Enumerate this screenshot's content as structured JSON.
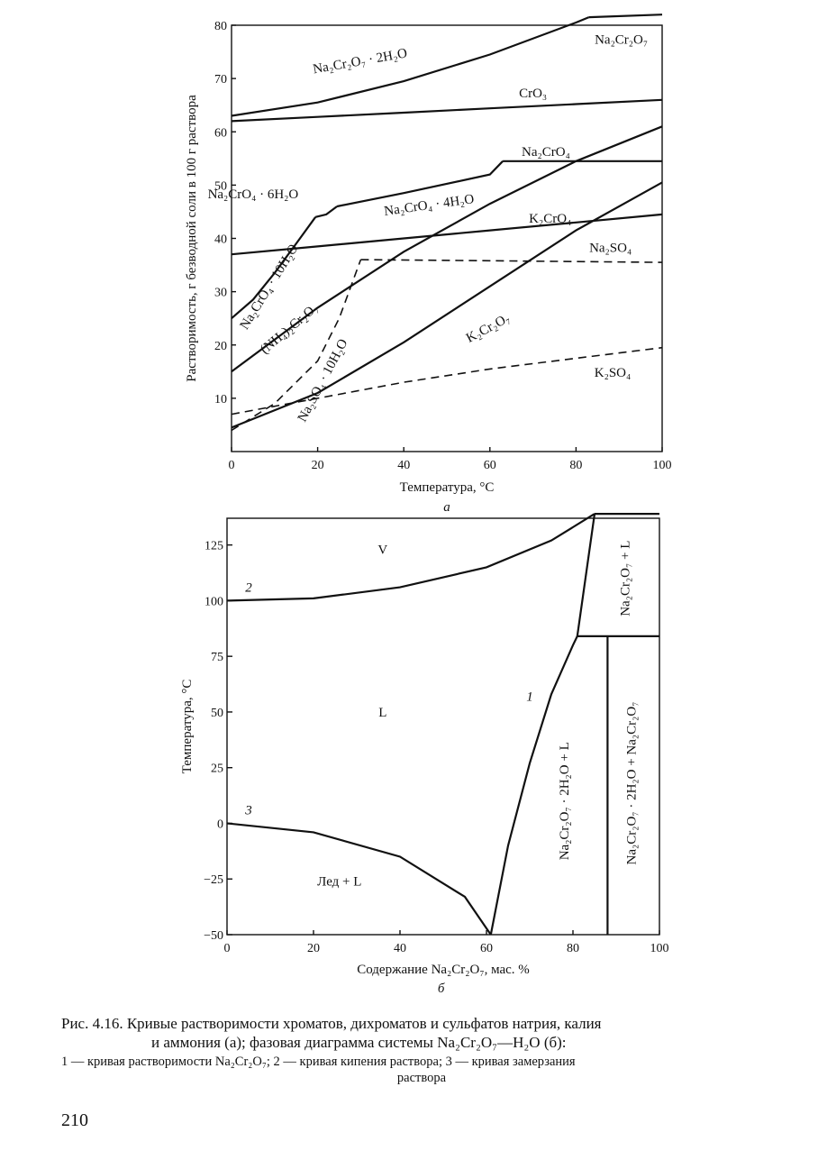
{
  "chart_data": [
    {
      "type": "line",
      "panel_label": "а",
      "ylabel": "Растворимость, г безводной соли в 100 г раствора",
      "xlabel": "Температура, °С",
      "xlim": [
        0,
        100
      ],
      "ylim": [
        0,
        80
      ],
      "xticks": [
        0,
        20,
        40,
        60,
        80,
        100
      ],
      "yticks": [
        10,
        20,
        30,
        40,
        50,
        60,
        70,
        80
      ],
      "series": [
        {
          "name": "Na₂Cr₂O₇ · 2H₂O",
          "style": "solid",
          "x": [
            0,
            20,
            40,
            60,
            80,
            83
          ],
          "y": [
            63,
            65.5,
            69.5,
            74.5,
            80.5,
            81.5
          ]
        },
        {
          "name": "Na₂Cr₂O₇",
          "style": "solid",
          "x": [
            83,
            100
          ],
          "y": [
            81.5,
            82
          ]
        },
        {
          "name": "CrO₃",
          "style": "solid",
          "x": [
            0,
            20,
            40,
            60,
            80,
            100
          ],
          "y": [
            62.0,
            62.8,
            63.6,
            64.4,
            65.2,
            66.0
          ]
        },
        {
          "name": "Na₂CrO₄ · 10H₂O",
          "style": "solid",
          "x": [
            0,
            5,
            10,
            15,
            19.5
          ],
          "y": [
            25,
            28.5,
            33.5,
            39,
            44
          ]
        },
        {
          "name": "Na₂CrO₄ · 6H₂O",
          "style": "solid",
          "x": [
            19.5,
            22,
            24.5
          ],
          "y": [
            44,
            44.5,
            46
          ]
        },
        {
          "name": "Na₂CrO₄ · 4H₂O",
          "style": "solid",
          "x": [
            24.5,
            40,
            60,
            63
          ],
          "y": [
            46,
            48.5,
            52,
            54.5
          ]
        },
        {
          "name": "Na₂CrO₄",
          "style": "solid",
          "x": [
            63,
            80,
            100
          ],
          "y": [
            54.5,
            54.5,
            54.5
          ]
        },
        {
          "name": "K₂CrO₄",
          "style": "solid",
          "x": [
            0,
            20,
            40,
            60,
            80,
            100
          ],
          "y": [
            37,
            38.5,
            40,
            41.5,
            43,
            44.5
          ]
        },
        {
          "name": "(NH₄)₂Cr₂O₇",
          "style": "solid",
          "x": [
            0,
            20,
            40,
            60,
            80,
            100
          ],
          "y": [
            15,
            27,
            37.5,
            46.5,
            54.5,
            61
          ]
        },
        {
          "name": "K₂Cr₂O₇",
          "style": "solid",
          "x": [
            0,
            20,
            40,
            60,
            80,
            100
          ],
          "y": [
            4.5,
            11,
            20.5,
            31,
            41.5,
            50.5
          ]
        },
        {
          "name": "Na₂SO₄ · 10H₂O",
          "style": "dashed",
          "x": [
            0,
            10,
            20,
            25,
            30
          ],
          "y": [
            4,
            9,
            17,
            25,
            36
          ]
        },
        {
          "name": "Na₂SO₄",
          "style": "dashed",
          "x": [
            30,
            60,
            100
          ],
          "y": [
            36,
            35.8,
            35.5
          ]
        },
        {
          "name": "K₂SO₄",
          "style": "dashed",
          "x": [
            0,
            20,
            40,
            60,
            80,
            100
          ],
          "y": [
            7,
            10,
            13,
            15.5,
            17.5,
            19.5
          ]
        }
      ]
    },
    {
      "type": "line",
      "panel_label": "б",
      "ylabel": "Температура, °С",
      "xlabel": "Содержание Na₂Cr₂O₇, мас. %",
      "xlim": [
        0,
        100
      ],
      "ylim": [
        -50,
        137
      ],
      "xticks": [
        0,
        20,
        40,
        60,
        80,
        100
      ],
      "yticks": [
        -50,
        -25,
        0,
        25,
        50,
        75,
        100,
        125
      ],
      "series": [
        {
          "name": "1",
          "style": "solid",
          "x": [
            61,
            65,
            70,
            75,
            80,
            81
          ],
          "y": [
            -50,
            -10,
            27,
            58,
            80,
            84
          ]
        },
        {
          "name": "2",
          "style": "solid",
          "x": [
            0,
            20,
            40,
            60,
            75,
            85
          ],
          "y": [
            100,
            101,
            106,
            115,
            127,
            139
          ]
        },
        {
          "name": "3",
          "style": "solid",
          "x": [
            0,
            20,
            40,
            55,
            61
          ],
          "y": [
            0,
            -4,
            -15,
            -33,
            -50
          ]
        },
        {
          "name": "",
          "style": "solid",
          "x": [
            85,
            100
          ],
          "y": [
            139,
            139
          ]
        },
        {
          "name": "",
          "style": "solid",
          "x": [
            81,
            100
          ],
          "y": [
            84,
            84
          ]
        },
        {
          "name": "",
          "style": "solid",
          "x": [
            85,
            81
          ],
          "y": [
            139,
            84
          ]
        },
        {
          "name": "",
          "style": "solid",
          "x": [
            88,
            88
          ],
          "y": [
            84,
            -50
          ]
        }
      ],
      "region_labels": [
        "V",
        "L",
        "Лед + L",
        "Na₂Cr₂O₇ + L",
        "Na₂Cr₂O₇ · 2H₂O + L",
        "Na₂Cr₂O₇ · 2H₂O + Na₂Cr₂O₇"
      ]
    }
  ],
  "caption": {
    "line1": "Рис. 4.16. Кривые растворимости хроматов, дихроматов и сульфатов натрия, калия",
    "line2": "и аммония (а); фазовая диаграмма системы Na₂Cr₂O₇—H₂O (б):",
    "note1": "1 — кривая растворимости Na₂Cr₂O₇; 2 — кривая кипения раствора; 3 — кривая замерзания",
    "note2": "раствора"
  },
  "page_number": "210"
}
